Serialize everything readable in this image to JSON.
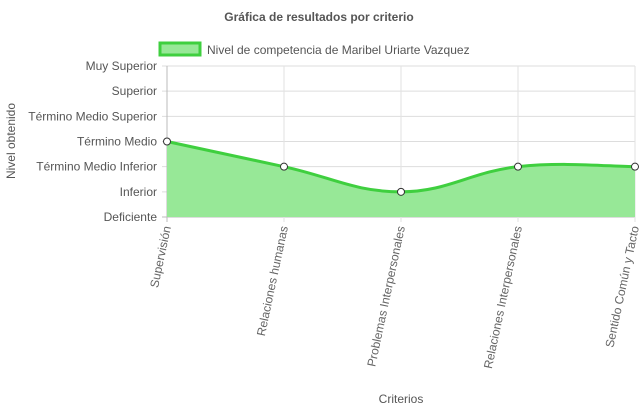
{
  "chart_data": {
    "type": "area",
    "title": "Gráfica de resultados por criterio",
    "xlabel": "Criterios",
    "ylabel": "Nivel obtenido",
    "y_levels": [
      "Deficiente",
      "Inferior",
      "Término Medio Inferior",
      "Término Medio",
      "Término Medio Superior",
      "Superior",
      "Muy Superior"
    ],
    "ylim": [
      0,
      6
    ],
    "categories": [
      "Supervisión",
      "Relaciones humanas",
      "Problemas Interpersonales",
      "Relaciones Interpersonales",
      "Sentido Común y Tacto"
    ],
    "series": [
      {
        "name": "Nivel de competencia de Maribel Uriarte Vazquez",
        "values": [
          3,
          2,
          1,
          2,
          2
        ],
        "line_color": "#3fcf3f",
        "fill_color": "#97e897"
      }
    ],
    "legend_position": "top",
    "grid": true
  }
}
